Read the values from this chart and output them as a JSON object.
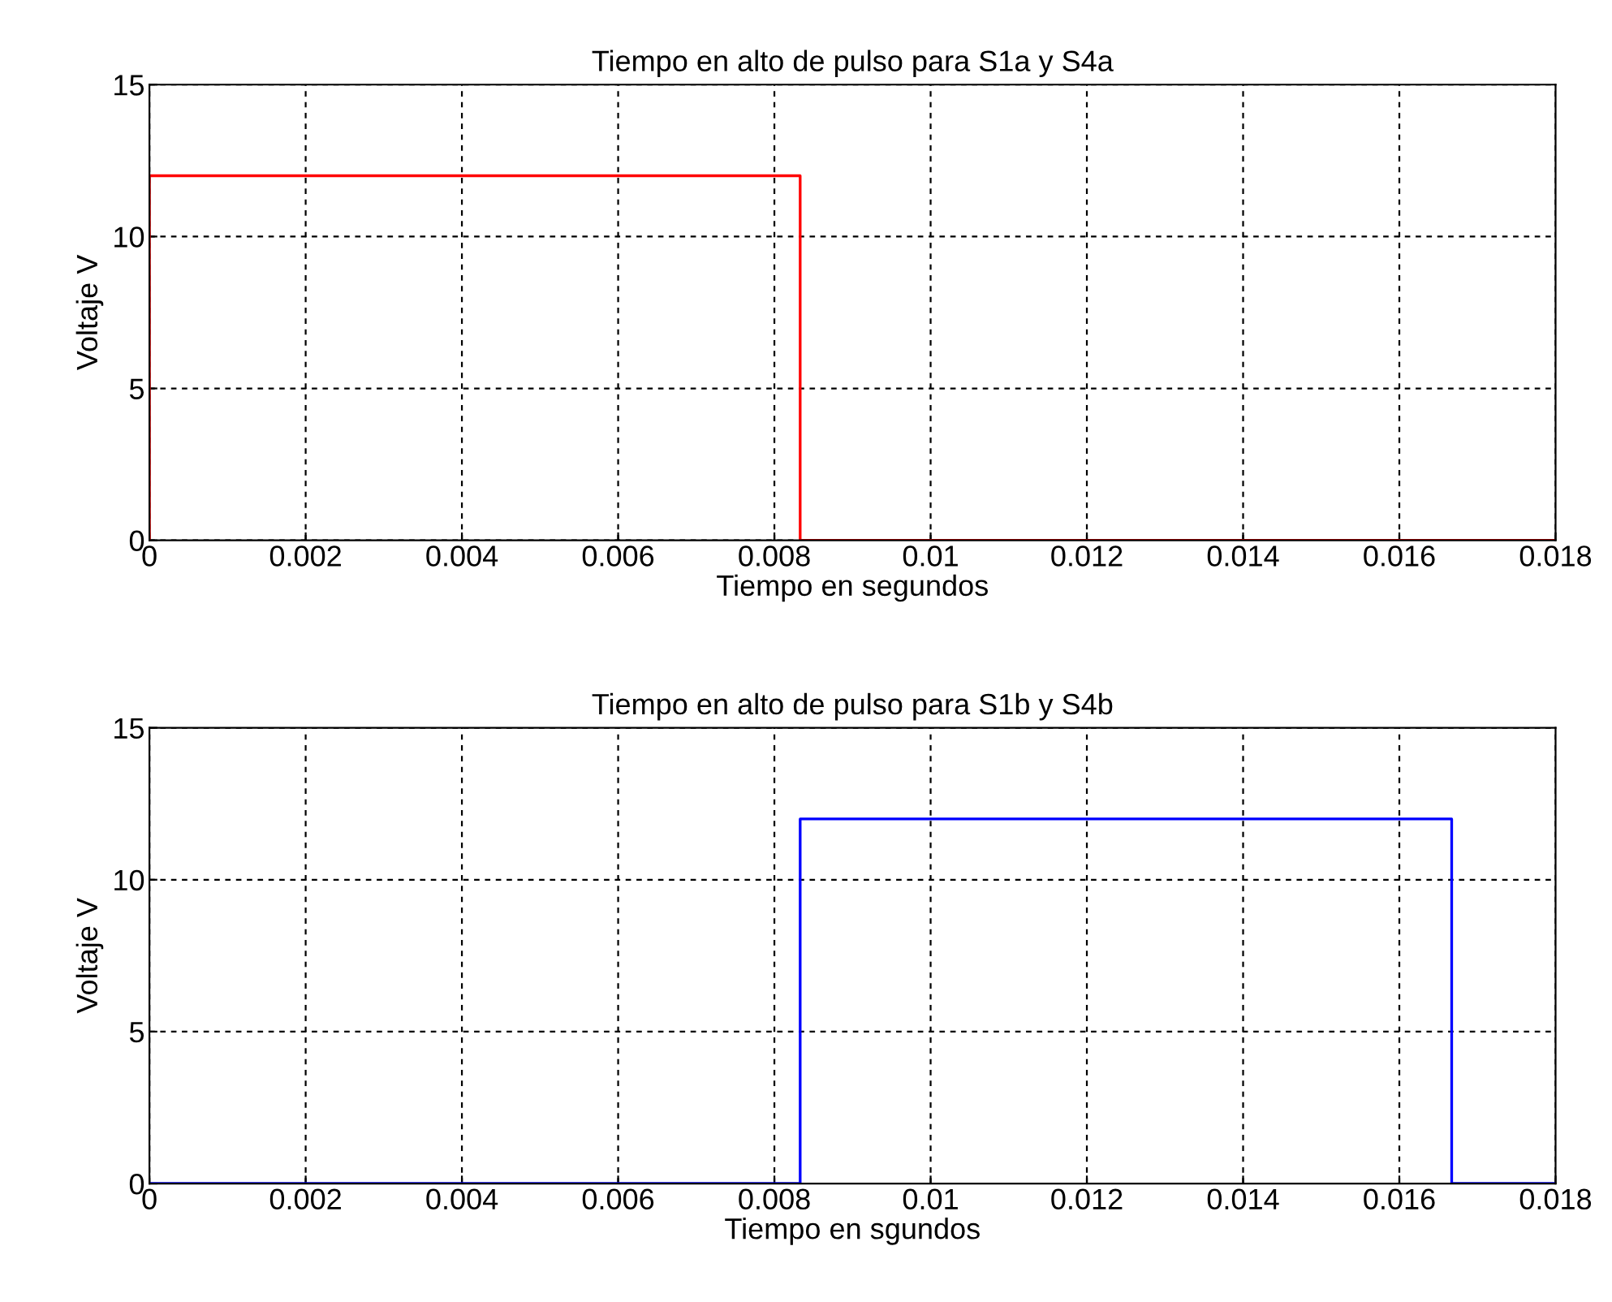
{
  "chart_data": [
    {
      "type": "line",
      "title": "Tiempo en alto de pulso para S1a y S4a",
      "xlabel": "Tiempo en segundos",
      "ylabel": "Voltaje V",
      "series": [
        {
          "color": "#ff0000",
          "x": [
            0,
            0,
            0.00833,
            0.00833,
            0.018
          ],
          "values": [
            0,
            12,
            12,
            0,
            0
          ]
        }
      ],
      "xlim": [
        0,
        0.018
      ],
      "xticks": [
        0,
        0.002,
        0.004,
        0.006,
        0.008,
        0.01,
        0.012,
        0.014,
        0.016,
        0.018
      ],
      "ylim": [
        0,
        15
      ],
      "yticks": [
        0,
        5,
        10,
        15
      ],
      "grid": true,
      "line_style": "solid"
    },
    {
      "type": "line",
      "title": "Tiempo en alto de pulso para S1b y S4b",
      "xlabel": "Tiempo en sgundos",
      "ylabel": "Voltaje V",
      "series": [
        {
          "color": "#0000ff",
          "x": [
            0,
            0.00833,
            0.00833,
            0.01667,
            0.01667,
            0.018
          ],
          "values": [
            0,
            0,
            12,
            12,
            0,
            0
          ]
        }
      ],
      "xlim": [
        0,
        0.018
      ],
      "xticks": [
        0,
        0.002,
        0.004,
        0.006,
        0.008,
        0.01,
        0.012,
        0.014,
        0.016,
        0.018
      ],
      "ylim": [
        0,
        15
      ],
      "yticks": [
        0,
        5,
        10,
        15
      ],
      "grid": true,
      "line_style": "solid"
    }
  ]
}
